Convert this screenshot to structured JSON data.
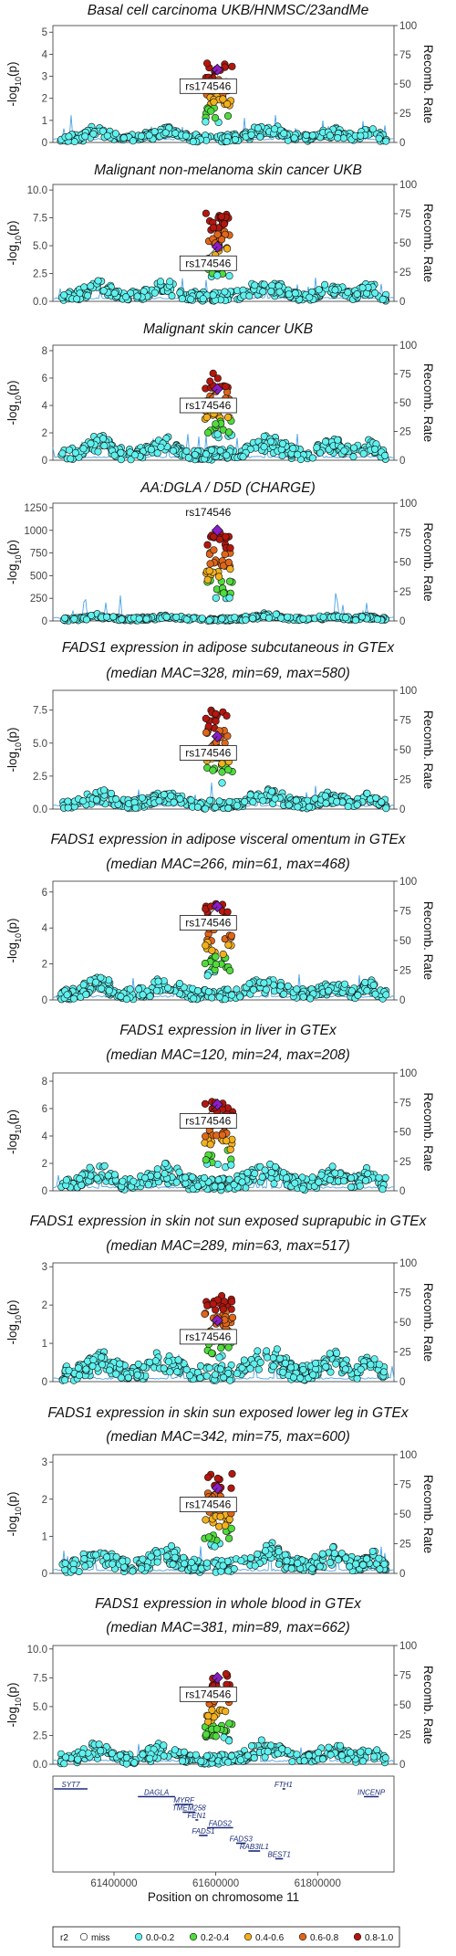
{
  "colors": {
    "miss": "#ffffff",
    "r0": "#5ff1ee",
    "r2": "#4fdc3c",
    "r4": "#f2b01e",
    "r6": "#e0661a",
    "r8": "#b3170e",
    "lead": "#8a1dc8",
    "recomb": "#4aa3e8"
  },
  "chart_data": {
    "type": "scatter",
    "lead_snp": "rs174546",
    "ylabel": "-log10(p)",
    "y2label": "Recomb. Rate",
    "y2lim": [
      0,
      100
    ],
    "y2ticks": [
      0,
      25,
      50,
      75,
      100
    ],
    "xlabel": "Position on chromosome 11",
    "xticks": [
      61400000,
      61600000,
      61800000
    ],
    "xlim": [
      61280000,
      61950000
    ],
    "lead_position": 61603000,
    "panels": [
      {
        "title_lines": [
          "Basal cell carcinoma UKB/HNMSC/23andMe"
        ],
        "yticks": [
          0,
          1,
          2,
          3,
          4,
          5
        ],
        "ylim": [
          0,
          5.3
        ],
        "peak_top": 3.6,
        "peak_base": 0.6,
        "lead_value": 3.3,
        "seed": 11
      },
      {
        "title_lines": [
          "Malignant non-melanoma skin cancer UKB"
        ],
        "yticks": [
          0.0,
          2.5,
          5.0,
          7.5,
          10.0
        ],
        "ylim": [
          0,
          10.5
        ],
        "peak_top": 8.0,
        "peak_base": 1.5,
        "lead_value": 4.9,
        "seed": 23
      },
      {
        "title_lines": [
          "Malignant skin cancer UKB"
        ],
        "yticks": [
          0,
          2,
          4,
          6,
          8
        ],
        "ylim": [
          0,
          8.4
        ],
        "peak_top": 6.4,
        "peak_base": 1.4,
        "lead_value": 5.2,
        "seed": 37
      },
      {
        "title_lines": [
          "AA:DGLA / D5D (CHARGE)"
        ],
        "yticks": [
          0,
          250,
          500,
          750,
          1000,
          1250
        ],
        "ylim": [
          0,
          1300
        ],
        "peak_top": 1000,
        "peak_base": 60,
        "lead_value": 1000,
        "seed": 41
      },
      {
        "title_lines": [
          "FADS1 expression in adipose subcutaneous in GTEx",
          "(median MAC=328, min=69, max=580)"
        ],
        "yticks": [
          0.0,
          2.5,
          5.0,
          7.5
        ],
        "ylim": [
          0,
          9.0
        ],
        "peak_top": 7.6,
        "peak_base": 1.2,
        "lead_value": 5.5,
        "seed": 53
      },
      {
        "title_lines": [
          "FADS1 expression in adipose visceral omentum in GTEx",
          "(median MAC=266, min=61, max=468)"
        ],
        "yticks": [
          0,
          2,
          4,
          6
        ],
        "ylim": [
          0,
          6.6
        ],
        "peak_top": 5.4,
        "peak_base": 1.0,
        "lead_value": 5.2,
        "seed": 67
      },
      {
        "title_lines": [
          "FADS1 expression in liver in GTEx",
          "(median MAC=120, min=24, max=208)"
        ],
        "yticks": [
          0,
          2,
          4,
          6,
          8
        ],
        "ylim": [
          0,
          8.6
        ],
        "peak_top": 6.6,
        "peak_base": 1.6,
        "lead_value": 6.3,
        "seed": 79
      },
      {
        "title_lines": [
          "FADS1 expression in skin not sun exposed suprapubic in GTEx",
          "(median MAC=289, min=63, max=517)"
        ],
        "yticks": [
          0,
          1,
          2,
          3
        ],
        "ylim": [
          0,
          3.1
        ],
        "peak_top": 2.3,
        "peak_base": 0.7,
        "lead_value": 1.6,
        "seed": 83
      },
      {
        "title_lines": [
          "FADS1 expression in skin sun exposed lower leg in GTEx",
          "(median MAC=342, min=75, max=600)"
        ],
        "yticks": [
          0,
          1,
          2,
          3
        ],
        "ylim": [
          0,
          3.2
        ],
        "peak_top": 2.7,
        "peak_base": 0.6,
        "lead_value": 2.3,
        "seed": 97
      },
      {
        "title_lines": [
          "FADS1 expression in whole blood in GTEx",
          "(median MAC=381, min=89, max=662)"
        ],
        "yticks": [
          0.0,
          2.5,
          5.0,
          7.5,
          10.0
        ],
        "ylim": [
          0,
          10.3
        ],
        "peak_top": 7.9,
        "peak_base": 1.5,
        "lead_value": 7.5,
        "seed": 101
      }
    ],
    "genes": [
      {
        "name": "SYT7",
        "start": 61282000,
        "end": 61348000,
        "row": 0
      },
      {
        "name": "DAGLA",
        "start": 61447000,
        "end": 61520000,
        "row": 1
      },
      {
        "name": "MYRF",
        "start": 61520000,
        "end": 61555000,
        "row": 2
      },
      {
        "name": "TMEM258",
        "start": 61535000,
        "end": 61560000,
        "row": 3
      },
      {
        "name": "FEN1",
        "start": 61560000,
        "end": 61565000,
        "row": 4
      },
      {
        "name": "FADS2",
        "start": 61583000,
        "end": 61634000,
        "row": 5
      },
      {
        "name": "FADS1",
        "start": 61567000,
        "end": 61584000,
        "row": 6
      },
      {
        "name": "FADS3",
        "start": 61640000,
        "end": 61659000,
        "row": 7
      },
      {
        "name": "RAB3IL1",
        "start": 61664000,
        "end": 61687000,
        "row": 8
      },
      {
        "name": "BEST1",
        "start": 61717000,
        "end": 61732000,
        "row": 9
      },
      {
        "name": "FTH1",
        "start": 61731000,
        "end": 61735000,
        "row": 0
      },
      {
        "name": "INCENP",
        "start": 61891000,
        "end": 61920000,
        "row": 1
      }
    ],
    "legend": {
      "title": "r2",
      "items": [
        {
          "label": "miss",
          "color_key": "miss"
        },
        {
          "label": "0.0-0.2",
          "color_key": "r0"
        },
        {
          "label": "0.2-0.4",
          "color_key": "r2"
        },
        {
          "label": "0.4-0.6",
          "color_key": "r4"
        },
        {
          "label": "0.6-0.8",
          "color_key": "r6"
        },
        {
          "label": "0.8-1.0",
          "color_key": "r8"
        }
      ]
    }
  }
}
